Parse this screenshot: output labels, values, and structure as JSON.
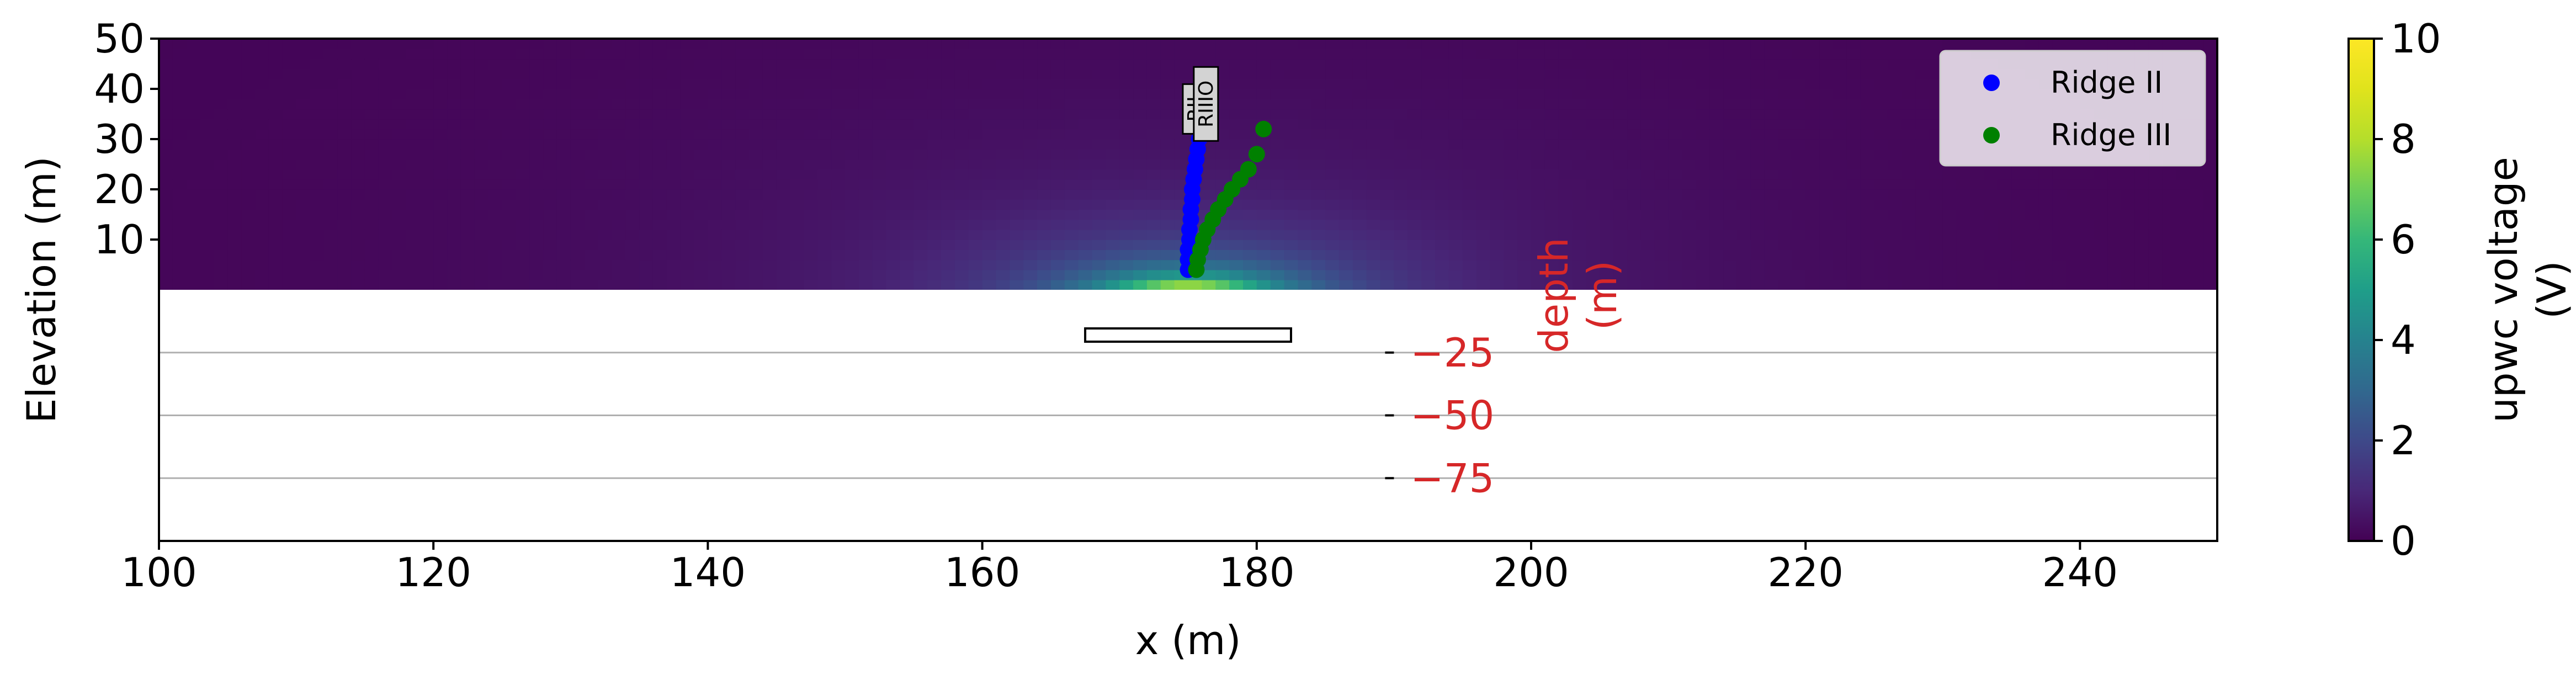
{
  "chart_data": {
    "type": "heatmap",
    "title": "",
    "xlabel": "x (m)",
    "ylabel": "Elevation (m)",
    "xlim": [
      100,
      250
    ],
    "ylim_upper": [
      0,
      50
    ],
    "x_ticks": [
      100,
      120,
      140,
      160,
      180,
      200,
      220,
      240
    ],
    "y_ticks_upper": [
      10,
      20,
      30,
      40,
      50
    ],
    "secondary_axis": {
      "label": "depth\n(m)",
      "ticks": [
        -25,
        -50,
        -75
      ],
      "tick_labels": [
        "−25",
        "−50",
        "−75"
      ],
      "x_position": 190,
      "color": "#d62728",
      "lim": [
        -100,
        0
      ],
      "grid": true
    },
    "heatmap": {
      "colormap": "viridis",
      "peak_x": 175,
      "peak_value": 10,
      "colorbar": {
        "label": "upwc voltage\n(V)",
        "range": [
          0,
          10
        ],
        "ticks": [
          0,
          2,
          4,
          6,
          8,
          10
        ]
      }
    },
    "series": [
      {
        "name": "Ridge II",
        "color": "#0000ff",
        "x": [
          175.0,
          175.0,
          175.0,
          175.1,
          175.1,
          175.2,
          175.2,
          175.3,
          175.3,
          175.4,
          175.5,
          175.6,
          175.7,
          175.8,
          175.9,
          176.0
        ],
        "y": [
          4,
          6,
          8,
          10,
          12,
          14,
          16,
          18,
          20,
          22,
          24,
          26,
          28,
          30,
          32,
          34
        ]
      },
      {
        "name": "Ridge III",
        "color": "#008000",
        "x": [
          175.6,
          175.7,
          175.9,
          176.1,
          176.4,
          176.8,
          177.2,
          177.7,
          178.2,
          178.8,
          179.4,
          180.0,
          180.5
        ],
        "y": [
          4,
          6,
          8,
          10,
          12,
          14,
          16,
          18,
          20,
          22,
          24,
          27,
          32
        ]
      }
    ],
    "annotations": [
      {
        "text": "RII",
        "x": 175.5,
        "y": 36
      },
      {
        "text": "RIIIO",
        "x": 176.3,
        "y": 37
      }
    ],
    "source_box": {
      "x0": 167.5,
      "x1": 182.5,
      "depth": -20
    },
    "legend": {
      "placement": "top-right",
      "entries": [
        "Ridge II",
        "Ridge III"
      ]
    }
  }
}
